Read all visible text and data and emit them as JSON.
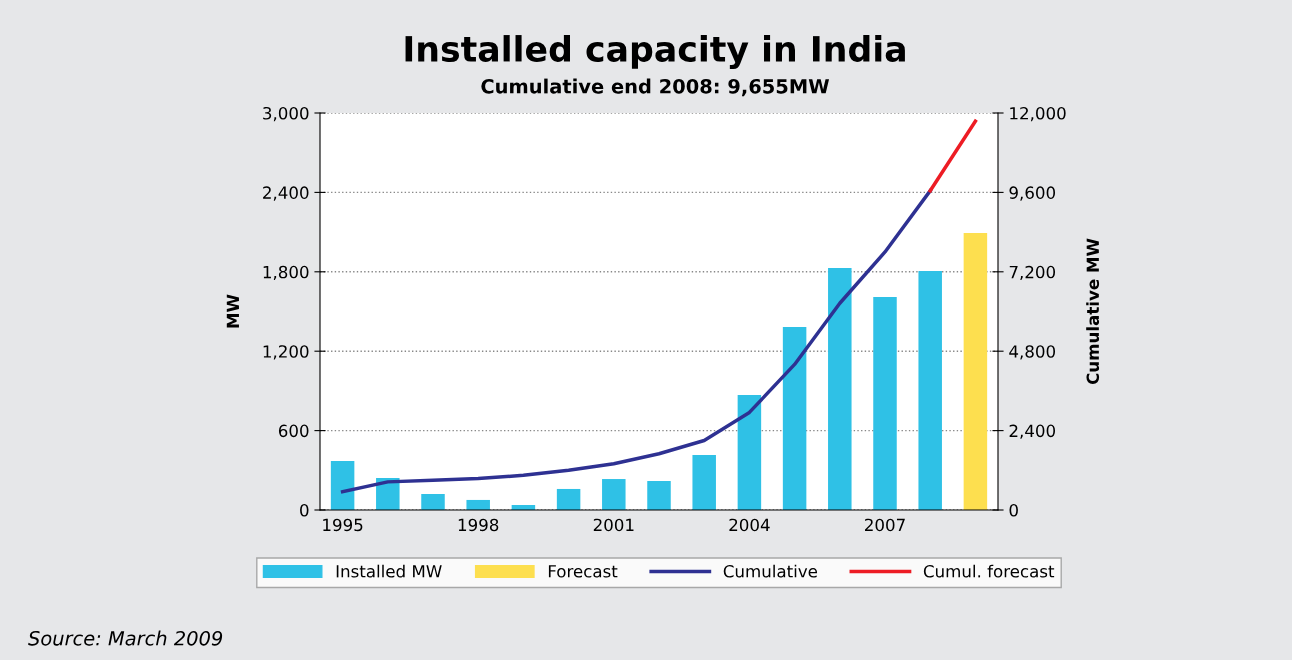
{
  "chart_data": {
    "type": "bar",
    "title": "Installed capacity in India",
    "subtitle": "Cumulative end 2008: 9,655MW",
    "ylabel": "MW",
    "y2label": "Cumulative MW",
    "categories": [
      "1995",
      null,
      null,
      "1998",
      null,
      null,
      "2001",
      null,
      null,
      "2004",
      null,
      null,
      "2007",
      null,
      null
    ],
    "series": [
      {
        "name": "Installed MW",
        "color": "#2fc1e6",
        "values": [
          370,
          242,
          121,
          76,
          38,
          159,
          234,
          219,
          416,
          869,
          1383,
          1829,
          1610,
          1806,
          null
        ]
      },
      {
        "name": "Forecast",
        "color": "#fddf4f",
        "values": [
          null,
          null,
          null,
          null,
          null,
          null,
          null,
          null,
          null,
          null,
          null,
          null,
          null,
          null,
          2094
        ]
      },
      {
        "name": "Cumulative",
        "type": "line",
        "axis": "y2",
        "color": "#2e3192",
        "values": [
          550,
          850,
          900,
          950,
          1050,
          1200,
          1400,
          1700,
          2100,
          2950,
          4400,
          6250,
          7800,
          9650,
          null
        ]
      },
      {
        "name": "Cumul. forecast",
        "type": "line",
        "axis": "y2",
        "color": "#ed1c24",
        "values": [
          null,
          null,
          null,
          null,
          null,
          null,
          null,
          null,
          null,
          null,
          null,
          null,
          null,
          9650,
          11750
        ]
      }
    ],
    "ylim": [
      0,
      3000
    ],
    "yticks": [
      {
        "value": 0,
        "label": "0"
      },
      {
        "value": 600,
        "label": "600"
      },
      {
        "value": 1200,
        "label": "1,200"
      },
      {
        "value": 1800,
        "label": "1,800"
      },
      {
        "value": 2400,
        "label": "2,400"
      },
      {
        "value": 3000,
        "label": "3,000"
      }
    ],
    "y2lim": [
      0,
      12000
    ],
    "y2ticks": [
      {
        "value": 0,
        "label": "0"
      },
      {
        "value": 2400,
        "label": "2,400"
      },
      {
        "value": 4800,
        "label": "4,800"
      },
      {
        "value": 7200,
        "label": "7,200"
      },
      {
        "value": 9600,
        "label": "9,600"
      },
      {
        "value": 12000,
        "label": "12,000"
      }
    ],
    "grid": "y",
    "legend": "bottom",
    "annotations": [
      "Source: March 2009"
    ]
  }
}
